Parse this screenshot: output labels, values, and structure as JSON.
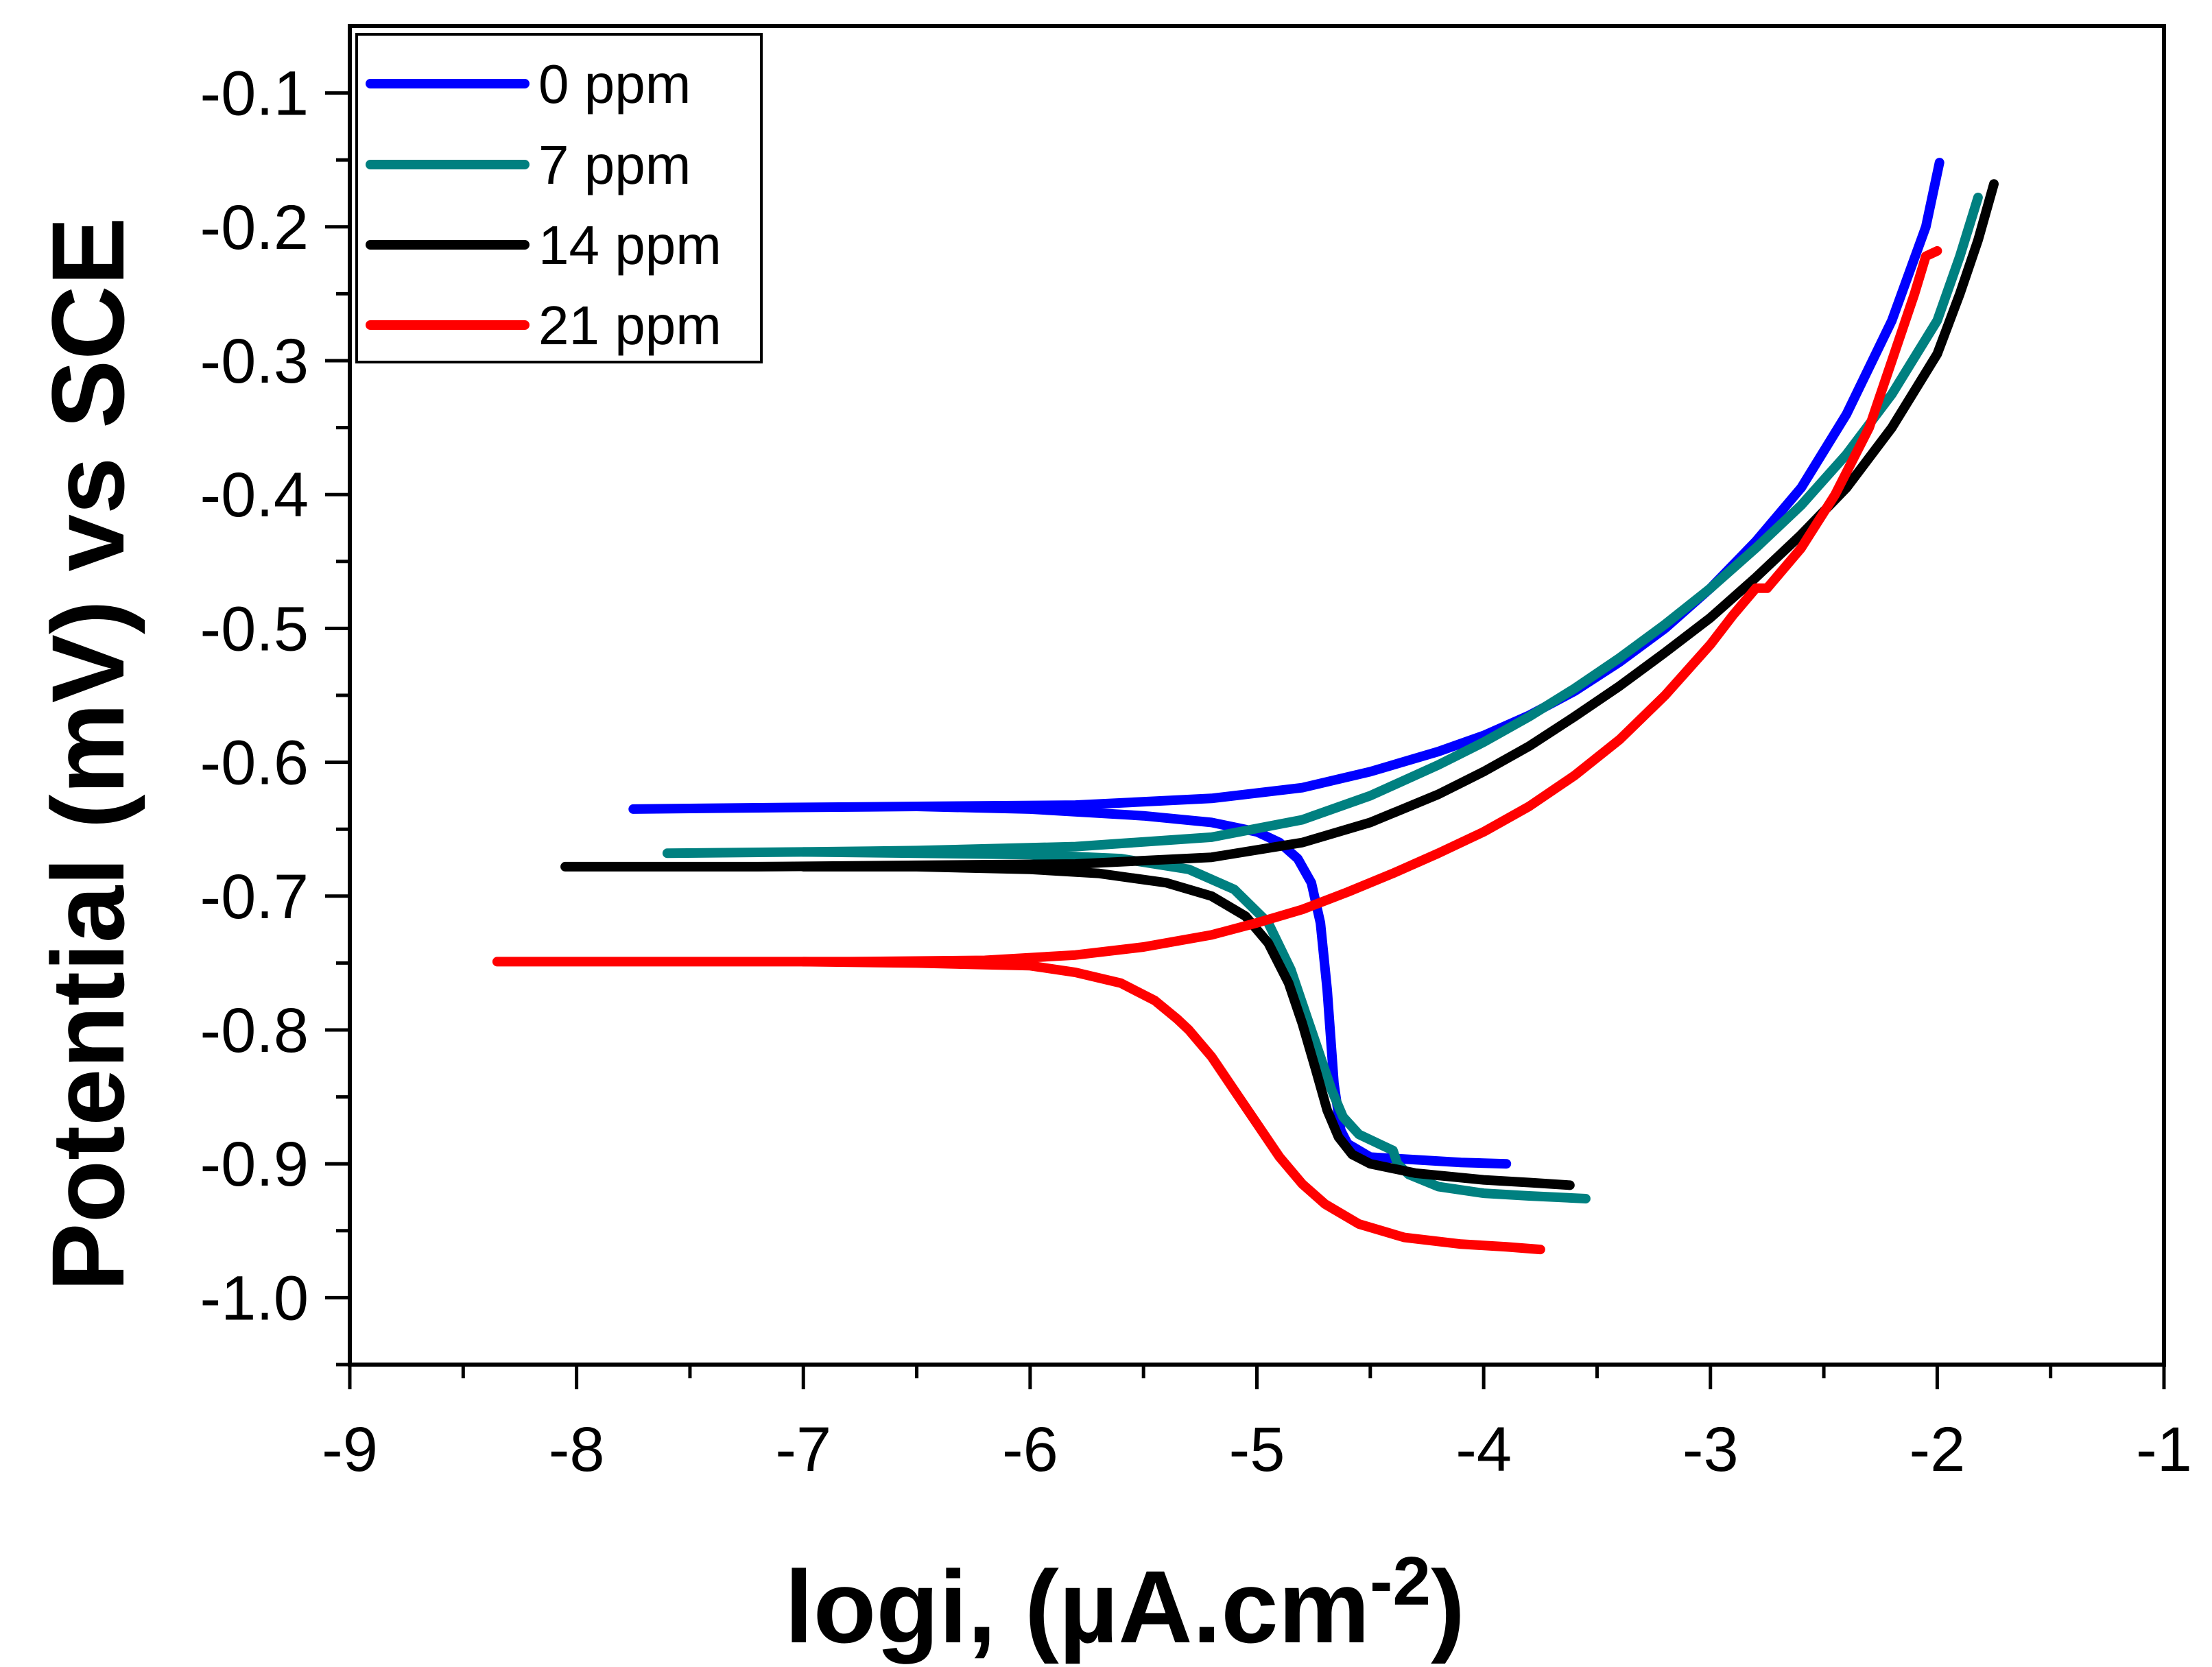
{
  "chart_data": {
    "type": "line",
    "title": "",
    "xlabel": "logi, (µA.cm",
    "xlabel_sup": "-2",
    "xlabel_close": ")",
    "ylabel": "Potential (mV) vs SCE",
    "xlim": [
      -9,
      -1
    ],
    "ylim": [
      -1.05,
      -0.05
    ],
    "xticks": [
      -9,
      -8,
      -7,
      -6,
      -5,
      -4,
      -3,
      -2,
      -1
    ],
    "yticks": [
      -1.0,
      -0.9,
      -0.8,
      -0.7,
      -0.6,
      -0.5,
      -0.4,
      -0.3,
      -0.2,
      -0.1
    ],
    "xtick_labels": [
      "-9",
      "-8",
      "-7",
      "-6",
      "-5",
      "-4",
      "-3",
      "-2",
      "-1"
    ],
    "ytick_labels": [
      "-1.0",
      "-0.9",
      "-0.8",
      "-0.7",
      "-0.6",
      "-0.5",
      "-0.4",
      "-0.3",
      "-0.2",
      "-0.1"
    ],
    "grid": false,
    "legend_position": "top-left",
    "series": [
      {
        "name": "0 ppm",
        "color": "#0000ff",
        "x": [
          -1.99,
          -2.05,
          -2.2,
          -2.4,
          -2.6,
          -2.8,
          -3.0,
          -3.2,
          -3.4,
          -3.6,
          -3.8,
          -4.0,
          -4.2,
          -4.5,
          -4.8,
          -5.2,
          -5.8,
          -6.5,
          -7.2,
          -7.75
        ],
        "y": [
          -0.152,
          -0.2,
          -0.27,
          -0.34,
          -0.395,
          -0.435,
          -0.47,
          -0.5,
          -0.525,
          -0.547,
          -0.565,
          -0.58,
          -0.592,
          -0.607,
          -0.619,
          -0.627,
          -0.632,
          -0.633,
          -0.634,
          -0.635
        ]
      },
      {
        "name": "0 ppm",
        "color": "#0000ff",
        "x": [
          -6.5,
          -6.0,
          -5.5,
          -5.2,
          -5.0,
          -4.9,
          -4.82,
          -4.76,
          -4.72,
          -4.69,
          -4.66,
          -4.63,
          -4.6,
          -4.5,
          -4.3,
          -4.1,
          -3.9
        ],
        "y": [
          -0.633,
          -0.635,
          -0.64,
          -0.645,
          -0.652,
          -0.66,
          -0.672,
          -0.69,
          -0.72,
          -0.77,
          -0.84,
          -0.875,
          -0.885,
          -0.895,
          -0.897,
          -0.899,
          -0.9
        ]
      },
      {
        "name": "7 ppm",
        "color": "#008080",
        "x": [
          -1.82,
          -1.9,
          -2.0,
          -2.2,
          -2.4,
          -2.6,
          -2.8,
          -3.0,
          -3.2,
          -3.4,
          -3.6,
          -3.8,
          -4.0,
          -4.2,
          -4.5,
          -4.8,
          -5.2,
          -5.8,
          -6.5,
          -7.0,
          -7.6
        ],
        "y": [
          -0.178,
          -0.222,
          -0.27,
          -0.325,
          -0.37,
          -0.408,
          -0.44,
          -0.47,
          -0.497,
          -0.522,
          -0.545,
          -0.566,
          -0.585,
          -0.602,
          -0.625,
          -0.643,
          -0.656,
          -0.663,
          -0.666,
          -0.667,
          -0.668
        ]
      },
      {
        "name": "7 ppm",
        "color": "#008080",
        "x": [
          -7.0,
          -6.5,
          -6.0,
          -5.6,
          -5.3,
          -5.1,
          -4.95,
          -4.85,
          -4.78,
          -4.72,
          -4.67,
          -4.62,
          -4.55,
          -4.45,
          -4.4,
          -4.38,
          -4.33,
          -4.2,
          -4.0,
          -3.8,
          -3.55
        ],
        "y": [
          -0.667,
          -0.668,
          -0.669,
          -0.672,
          -0.68,
          -0.695,
          -0.72,
          -0.755,
          -0.79,
          -0.82,
          -0.845,
          -0.865,
          -0.878,
          -0.886,
          -0.89,
          -0.9,
          -0.908,
          -0.917,
          -0.922,
          -0.924,
          -0.926
        ]
      },
      {
        "name": "14 ppm",
        "color": "#000000",
        "x": [
          -1.75,
          -1.82,
          -1.9,
          -2.0,
          -2.2,
          -2.4,
          -2.6,
          -2.8,
          -3.0,
          -3.2,
          -3.4,
          -3.6,
          -3.8,
          -4.0,
          -4.2,
          -4.5,
          -4.8,
          -5.2,
          -5.8,
          -6.5,
          -7.2,
          -8.05
        ],
        "y": [
          -0.168,
          -0.21,
          -0.25,
          -0.295,
          -0.35,
          -0.395,
          -0.43,
          -0.462,
          -0.492,
          -0.518,
          -0.543,
          -0.566,
          -0.588,
          -0.607,
          -0.624,
          -0.645,
          -0.66,
          -0.671,
          -0.676,
          -0.677,
          -0.678,
          -0.678
        ]
      },
      {
        "name": "14 ppm",
        "color": "#000000",
        "x": [
          -7.0,
          -6.5,
          -6.0,
          -5.7,
          -5.4,
          -5.2,
          -5.05,
          -4.95,
          -4.86,
          -4.8,
          -4.74,
          -4.69,
          -4.64,
          -4.58,
          -4.5,
          -4.3,
          -4.0,
          -3.8,
          -3.62
        ],
        "y": [
          -0.678,
          -0.678,
          -0.68,
          -0.683,
          -0.69,
          -0.7,
          -0.715,
          -0.735,
          -0.765,
          -0.795,
          -0.83,
          -0.86,
          -0.88,
          -0.893,
          -0.9,
          -0.907,
          -0.912,
          -0.914,
          -0.916
        ]
      },
      {
        "name": "21 ppm",
        "color": "#ff0000",
        "x": [
          -2.0,
          -2.05,
          -2.1,
          -2.2,
          -2.3,
          -2.45,
          -2.6,
          -2.75,
          -2.8,
          -2.9,
          -3.0,
          -3.2,
          -3.4,
          -3.6,
          -3.8,
          -4.0,
          -4.2,
          -4.4,
          -4.6,
          -4.8,
          -5.0,
          -5.2,
          -5.5,
          -5.8,
          -6.2,
          -6.8,
          -7.5,
          -8.35
        ],
        "y": [
          -0.218,
          -0.222,
          -0.25,
          -0.3,
          -0.35,
          -0.4,
          -0.44,
          -0.47,
          -0.47,
          -0.49,
          -0.512,
          -0.55,
          -0.583,
          -0.61,
          -0.633,
          -0.652,
          -0.668,
          -0.683,
          -0.697,
          -0.71,
          -0.72,
          -0.729,
          -0.738,
          -0.744,
          -0.748,
          -0.749,
          -0.749,
          -0.749
        ]
      },
      {
        "name": "21 ppm",
        "color": "#ff0000",
        "x": [
          -7.0,
          -6.5,
          -6.0,
          -5.8,
          -5.6,
          -5.45,
          -5.35,
          -5.3,
          -5.2,
          -5.1,
          -5.0,
          -4.9,
          -4.8,
          -4.7,
          -4.55,
          -4.35,
          -4.1,
          -3.9,
          -3.75
        ],
        "y": [
          -0.749,
          -0.75,
          -0.752,
          -0.757,
          -0.765,
          -0.778,
          -0.792,
          -0.8,
          -0.82,
          -0.845,
          -0.87,
          -0.895,
          -0.915,
          -0.93,
          -0.945,
          -0.955,
          -0.96,
          -0.962,
          -0.964
        ]
      }
    ],
    "legend": [
      {
        "label": "0 ppm",
        "color": "#0000ff"
      },
      {
        "label": "7 ppm",
        "color": "#008080"
      },
      {
        "label": "14 ppm",
        "color": "#000000"
      },
      {
        "label": "21 ppm",
        "color": "#ff0000"
      }
    ]
  }
}
